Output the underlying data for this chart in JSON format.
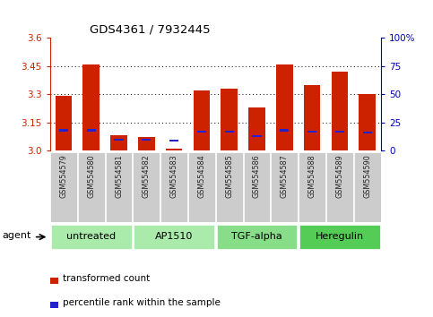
{
  "title": "GDS4361 / 7932445",
  "samples": [
    "GSM554579",
    "GSM554580",
    "GSM554581",
    "GSM554582",
    "GSM554583",
    "GSM554584",
    "GSM554585",
    "GSM554586",
    "GSM554587",
    "GSM554588",
    "GSM554589",
    "GSM554590"
  ],
  "red_values": [
    3.29,
    3.46,
    3.08,
    3.07,
    3.01,
    3.32,
    3.33,
    3.23,
    3.46,
    3.35,
    3.42,
    3.3
  ],
  "blue_values_pct": [
    18,
    18,
    10,
    10,
    9,
    17,
    17,
    13,
    18,
    17,
    17,
    16
  ],
  "y_min": 3.0,
  "y_max": 3.6,
  "y_ticks_left": [
    3.0,
    3.15,
    3.3,
    3.45,
    3.6
  ],
  "y_ticks_right": [
    0,
    25,
    50,
    75,
    100
  ],
  "groups": [
    {
      "label": "untreated",
      "start": 0,
      "end": 3,
      "color": "#aaeaaa"
    },
    {
      "label": "AP1510",
      "start": 3,
      "end": 6,
      "color": "#aaeaaa"
    },
    {
      "label": "TGF-alpha",
      "start": 6,
      "end": 9,
      "color": "#88dd88"
    },
    {
      "label": "Heregulin",
      "start": 9,
      "end": 12,
      "color": "#55cc55"
    }
  ],
  "bar_color": "#cc2200",
  "marker_color": "#2222cc",
  "left_axis_color": "#cc2200",
  "right_axis_color": "#0000bb",
  "sample_box_color": "#cccccc",
  "bg_color": "#ffffff",
  "legend_items": [
    {
      "label": "transformed count",
      "color": "#cc2200"
    },
    {
      "label": "percentile rank within the sample",
      "color": "#2222cc"
    }
  ]
}
